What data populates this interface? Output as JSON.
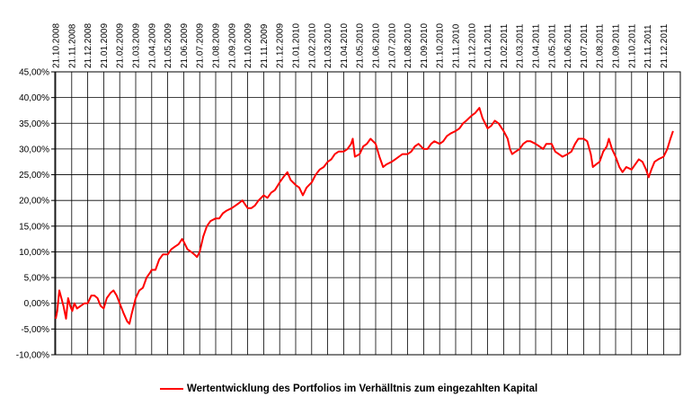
{
  "chart_data": {
    "type": "line",
    "title": "",
    "xlabel": "",
    "ylabel": "",
    "ylim": [
      -0.1,
      0.45
    ],
    "y_ticks": [
      -0.1,
      -0.05,
      0.0,
      0.05,
      0.1,
      0.15,
      0.2,
      0.25,
      0.3,
      0.35,
      0.4,
      0.45
    ],
    "y_tick_labels": [
      "-10,00%",
      "-5,00%",
      "0,00%",
      "5,00%",
      "10,00%",
      "15,00%",
      "20,00%",
      "25,00%",
      "30,00%",
      "35,00%",
      "40,00%",
      "45,00%"
    ],
    "x_tick_labels": [
      "21.10.2008",
      "21.11.2008",
      "21.12.2008",
      "21.01.2009",
      "21.02.2009",
      "21.03.2009",
      "21.04.2009",
      "21.05.2009",
      "21.06.2009",
      "21.07.2009",
      "21.08.2009",
      "21.09.2009",
      "21.10.2009",
      "21.11.2009",
      "21.12.2009",
      "21.01.2010",
      "21.02.2010",
      "21.03.2010",
      "21.04.2010",
      "21.05.2010",
      "21.06.2010",
      "21.07.2010",
      "21.08.2010",
      "21.09.2010",
      "21.10.2010",
      "21.11.2010",
      "21.12.2010",
      "21.01.2011",
      "21.02.2011",
      "21.03.2011",
      "21.04.2011",
      "21.05.2011",
      "21.06.2011",
      "21.07.2011",
      "21.08.2011",
      "21.09.2011",
      "21.10.2011",
      "21.11.2011",
      "21.12.2011"
    ],
    "grid": true,
    "legend_position": "bottom",
    "series": [
      {
        "name": "Wertentwicklung des Portfolios im Verhälltnis zum eingezahlten Kapital",
        "color": "#ff0000",
        "points": [
          [
            "2008-10-21",
            -0.03
          ],
          [
            "2008-10-24",
            -0.015
          ],
          [
            "2008-10-28",
            0.025
          ],
          [
            "2008-11-01",
            0.01
          ],
          [
            "2008-11-05",
            -0.005
          ],
          [
            "2008-11-10",
            -0.03
          ],
          [
            "2008-11-14",
            0.01
          ],
          [
            "2008-11-18",
            -0.005
          ],
          [
            "2008-11-22",
            -0.015
          ],
          [
            "2008-11-26",
            0.0
          ],
          [
            "2008-12-01",
            -0.01
          ],
          [
            "2008-12-08",
            -0.005
          ],
          [
            "2008-12-15",
            0.0
          ],
          [
            "2008-12-21",
            0.0
          ],
          [
            "2008-12-28",
            0.015
          ],
          [
            "2009-01-03",
            0.015
          ],
          [
            "2009-01-09",
            0.01
          ],
          [
            "2009-01-15",
            -0.005
          ],
          [
            "2009-01-21",
            -0.01
          ],
          [
            "2009-01-27",
            0.01
          ],
          [
            "2009-02-03",
            0.02
          ],
          [
            "2009-02-09",
            0.025
          ],
          [
            "2009-02-15",
            0.015
          ],
          [
            "2009-02-21",
            0.0
          ],
          [
            "2009-02-28",
            -0.02
          ],
          [
            "2009-03-06",
            -0.035
          ],
          [
            "2009-03-10",
            -0.04
          ],
          [
            "2009-03-14",
            -0.02
          ],
          [
            "2009-03-21",
            0.01
          ],
          [
            "2009-03-28",
            0.025
          ],
          [
            "2009-04-04",
            0.03
          ],
          [
            "2009-04-11",
            0.05
          ],
          [
            "2009-04-18",
            0.06
          ],
          [
            "2009-04-21",
            0.065
          ],
          [
            "2009-04-28",
            0.065
          ],
          [
            "2009-05-05",
            0.085
          ],
          [
            "2009-05-12",
            0.095
          ],
          [
            "2009-05-21",
            0.095
          ],
          [
            "2009-05-28",
            0.105
          ],
          [
            "2009-06-04",
            0.11
          ],
          [
            "2009-06-11",
            0.115
          ],
          [
            "2009-06-18",
            0.125
          ],
          [
            "2009-06-21",
            0.12
          ],
          [
            "2009-06-28",
            0.105
          ],
          [
            "2009-07-05",
            0.1
          ],
          [
            "2009-07-11",
            0.095
          ],
          [
            "2009-07-16",
            0.09
          ],
          [
            "2009-07-21",
            0.1
          ],
          [
            "2009-07-28",
            0.13
          ],
          [
            "2009-08-04",
            0.15
          ],
          [
            "2009-08-11",
            0.16
          ],
          [
            "2009-08-21",
            0.165
          ],
          [
            "2009-08-28",
            0.165
          ],
          [
            "2009-09-04",
            0.175
          ],
          [
            "2009-09-11",
            0.18
          ],
          [
            "2009-09-21",
            0.185
          ],
          [
            "2009-09-28",
            0.19
          ],
          [
            "2009-10-05",
            0.195
          ],
          [
            "2009-10-11",
            0.2
          ],
          [
            "2009-10-21",
            0.185
          ],
          [
            "2009-10-28",
            0.185
          ],
          [
            "2009-11-04",
            0.19
          ],
          [
            "2009-11-11",
            0.2
          ],
          [
            "2009-11-21",
            0.21
          ],
          [
            "2009-11-28",
            0.205
          ],
          [
            "2009-12-05",
            0.215
          ],
          [
            "2009-12-12",
            0.22
          ],
          [
            "2009-12-21",
            0.235
          ],
          [
            "2009-12-28",
            0.245
          ],
          [
            "2010-01-05",
            0.255
          ],
          [
            "2010-01-11",
            0.24
          ],
          [
            "2010-01-21",
            0.23
          ],
          [
            "2010-01-28",
            0.225
          ],
          [
            "2010-02-04",
            0.21
          ],
          [
            "2010-02-11",
            0.225
          ],
          [
            "2010-02-21",
            0.235
          ],
          [
            "2010-02-28",
            0.25
          ],
          [
            "2010-03-07",
            0.26
          ],
          [
            "2010-03-14",
            0.265
          ],
          [
            "2010-03-21",
            0.275
          ],
          [
            "2010-03-28",
            0.28
          ],
          [
            "2010-04-04",
            0.29
          ],
          [
            "2010-04-11",
            0.295
          ],
          [
            "2010-04-21",
            0.295
          ],
          [
            "2010-04-28",
            0.3
          ],
          [
            "2010-05-05",
            0.31
          ],
          [
            "2010-05-08",
            0.32
          ],
          [
            "2010-05-12",
            0.285
          ],
          [
            "2010-05-21",
            0.29
          ],
          [
            "2010-05-28",
            0.305
          ],
          [
            "2010-06-04",
            0.31
          ],
          [
            "2010-06-11",
            0.32
          ],
          [
            "2010-06-21",
            0.31
          ],
          [
            "2010-06-28",
            0.285
          ],
          [
            "2010-07-05",
            0.265
          ],
          [
            "2010-07-11",
            0.27
          ],
          [
            "2010-07-21",
            0.275
          ],
          [
            "2010-07-28",
            0.28
          ],
          [
            "2010-08-04",
            0.285
          ],
          [
            "2010-08-11",
            0.29
          ],
          [
            "2010-08-21",
            0.29
          ],
          [
            "2010-08-28",
            0.295
          ],
          [
            "2010-09-04",
            0.305
          ],
          [
            "2010-09-11",
            0.31
          ],
          [
            "2010-09-21",
            0.3
          ],
          [
            "2010-09-28",
            0.3
          ],
          [
            "2010-10-05",
            0.31
          ],
          [
            "2010-10-11",
            0.315
          ],
          [
            "2010-10-21",
            0.31
          ],
          [
            "2010-10-28",
            0.315
          ],
          [
            "2010-11-04",
            0.325
          ],
          [
            "2010-11-11",
            0.33
          ],
          [
            "2010-11-21",
            0.335
          ],
          [
            "2010-11-28",
            0.34
          ],
          [
            "2010-12-05",
            0.35
          ],
          [
            "2010-12-11",
            0.355
          ],
          [
            "2010-12-21",
            0.365
          ],
          [
            "2010-12-28",
            0.37
          ],
          [
            "2011-01-05",
            0.38
          ],
          [
            "2011-01-11",
            0.36
          ],
          [
            "2011-01-21",
            0.34
          ],
          [
            "2011-01-28",
            0.345
          ],
          [
            "2011-02-04",
            0.355
          ],
          [
            "2011-02-11",
            0.35
          ],
          [
            "2011-02-21",
            0.335
          ],
          [
            "2011-02-28",
            0.32
          ],
          [
            "2011-03-04",
            0.3
          ],
          [
            "2011-03-08",
            0.29
          ],
          [
            "2011-03-14",
            0.295
          ],
          [
            "2011-03-21",
            0.3
          ],
          [
            "2011-03-28",
            0.31
          ],
          [
            "2011-04-04",
            0.315
          ],
          [
            "2011-04-11",
            0.315
          ],
          [
            "2011-04-21",
            0.31
          ],
          [
            "2011-04-28",
            0.305
          ],
          [
            "2011-05-05",
            0.3
          ],
          [
            "2011-05-11",
            0.31
          ],
          [
            "2011-05-21",
            0.31
          ],
          [
            "2011-05-28",
            0.295
          ],
          [
            "2011-06-04",
            0.29
          ],
          [
            "2011-06-11",
            0.285
          ],
          [
            "2011-06-21",
            0.29
          ],
          [
            "2011-06-28",
            0.295
          ],
          [
            "2011-07-05",
            0.31
          ],
          [
            "2011-07-11",
            0.32
          ],
          [
            "2011-07-21",
            0.32
          ],
          [
            "2011-07-28",
            0.315
          ],
          [
            "2011-08-04",
            0.29
          ],
          [
            "2011-08-08",
            0.265
          ],
          [
            "2011-08-14",
            0.27
          ],
          [
            "2011-08-21",
            0.275
          ],
          [
            "2011-08-28",
            0.295
          ],
          [
            "2011-09-04",
            0.305
          ],
          [
            "2011-09-08",
            0.32
          ],
          [
            "2011-09-14",
            0.3
          ],
          [
            "2011-09-21",
            0.285
          ],
          [
            "2011-09-28",
            0.265
          ],
          [
            "2011-10-04",
            0.255
          ],
          [
            "2011-10-11",
            0.265
          ],
          [
            "2011-10-21",
            0.26
          ],
          [
            "2011-10-28",
            0.27
          ],
          [
            "2011-11-04",
            0.28
          ],
          [
            "2011-11-11",
            0.275
          ],
          [
            "2011-11-18",
            0.26
          ],
          [
            "2011-11-23",
            0.245
          ],
          [
            "2011-11-28",
            0.26
          ],
          [
            "2011-12-04",
            0.275
          ],
          [
            "2011-12-11",
            0.28
          ],
          [
            "2011-12-21",
            0.285
          ],
          [
            "2011-12-28",
            0.3
          ],
          [
            "2012-01-03",
            0.32
          ],
          [
            "2012-01-08",
            0.335
          ]
        ]
      }
    ]
  }
}
